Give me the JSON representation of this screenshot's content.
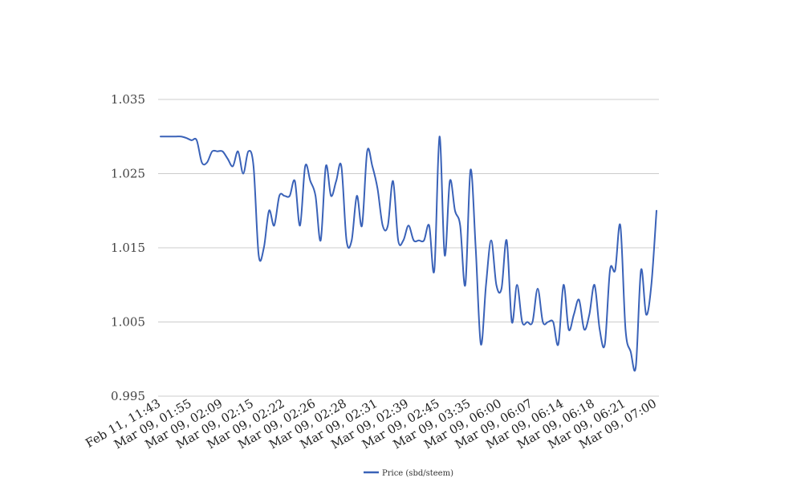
{
  "chart_data": {
    "type": "line",
    "title": "",
    "xlabel": "",
    "ylabel": "",
    "ylim": [
      0.995,
      1.035
    ],
    "yticks": [
      "1.035",
      "1.025",
      "1.015",
      "1.005",
      "0.995"
    ],
    "ytick_values": [
      1.035,
      1.025,
      1.015,
      1.005,
      0.995
    ],
    "xtick_labels": [
      "Feb 11, 11:43",
      "Mar 09, 01:55",
      "Mar 09, 02:09",
      "Mar 09, 02:15",
      "Mar 09, 02:22",
      "Mar 09, 02:26",
      "Mar 09, 02:28",
      "Mar 09, 02:31",
      "Mar 09, 02:39",
      "Mar 09, 02:45",
      "Mar 09, 03:35",
      "Mar 09, 06:00",
      "Mar 09, 06:07",
      "Mar 09, 06:14",
      "Mar 09, 06:18",
      "Mar 09, 06:21",
      "Mar 09, 07:00"
    ],
    "xtick_every": 6,
    "grid": true,
    "legend_position": "bottom",
    "colors": {
      "series": "#3a62b8",
      "grid": "#cccccc"
    },
    "series": [
      {
        "name": "Price (sbd/steem)",
        "values": [
          1.03,
          1.03,
          1.03,
          1.03,
          1.03,
          1.0298,
          1.0295,
          1.0295,
          1.0265,
          1.0265,
          1.028,
          1.028,
          1.028,
          1.027,
          1.026,
          1.028,
          1.025,
          1.028,
          1.026,
          1.014,
          1.015,
          1.02,
          1.018,
          1.022,
          1.022,
          1.022,
          1.024,
          1.018,
          1.026,
          1.024,
          1.022,
          1.016,
          1.026,
          1.022,
          1.024,
          1.026,
          1.016,
          1.016,
          1.022,
          1.018,
          1.028,
          1.026,
          1.023,
          1.018,
          1.018,
          1.024,
          1.016,
          1.016,
          1.018,
          1.016,
          1.016,
          1.016,
          1.018,
          1.012,
          1.03,
          1.014,
          1.024,
          1.02,
          1.018,
          1.01,
          1.0255,
          1.015,
          1.002,
          1.01,
          1.016,
          1.01,
          1.0095,
          1.016,
          1.005,
          1.01,
          1.005,
          1.005,
          1.005,
          1.0095,
          1.005,
          1.005,
          1.005,
          1.002,
          1.01,
          1.004,
          1.006,
          1.008,
          1.004,
          1.006,
          1.01,
          1.004,
          1.002,
          1.012,
          1.012,
          1.018,
          1.004,
          1.001,
          0.999,
          1.012,
          1.006,
          1.01,
          1.02
        ]
      }
    ]
  }
}
